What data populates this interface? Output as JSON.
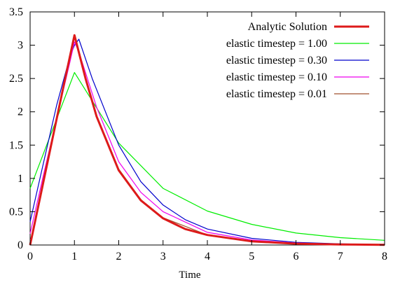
{
  "chart_data": {
    "type": "line",
    "title": "",
    "xlabel": "Time",
    "ylabel": "",
    "xlim": [
      0,
      8
    ],
    "ylim": [
      0,
      3.5
    ],
    "x_ticks": [
      "0",
      "1",
      "2",
      "3",
      "4",
      "5",
      "6",
      "7",
      "8"
    ],
    "y_ticks": [
      "0",
      "0.5",
      "1",
      "1.5",
      "2",
      "2.5",
      "3",
      "3.5"
    ],
    "grid": false,
    "legend_position": "top-right",
    "series": [
      {
        "name": "Analytic Solution",
        "color": "#dd1a1a",
        "line_style": "thick",
        "x": [
          0,
          0.25,
          0.5,
          0.75,
          1,
          1.25,
          1.5,
          2,
          2.5,
          3,
          3.5,
          4,
          5,
          6,
          7,
          8
        ],
        "y": [
          0,
          0.79,
          1.58,
          2.37,
          3.15,
          2.5,
          1.93,
          1.12,
          0.67,
          0.4,
          0.24,
          0.15,
          0.055,
          0.02,
          0.008,
          0.003
        ]
      },
      {
        "name": "elastic timestep = 1.00",
        "color": "#00ee00",
        "line_style": "thin",
        "x": [
          0,
          1,
          2,
          3,
          4,
          5,
          6,
          7,
          8
        ],
        "y": [
          0.85,
          2.59,
          1.53,
          0.85,
          0.51,
          0.31,
          0.18,
          0.11,
          0.07
        ]
      },
      {
        "name": "elastic timestep = 0.30",
        "color": "#0000cc",
        "line_style": "thin",
        "x": [
          0,
          0.3,
          0.6,
          0.9,
          1.0,
          1.1,
          1.4,
          2.0,
          2.5,
          3.0,
          3.5,
          4.0,
          5.0,
          6.0,
          7.0,
          8.0
        ],
        "y": [
          0.35,
          1.23,
          2.1,
          2.83,
          3.0,
          3.09,
          2.5,
          1.5,
          0.95,
          0.6,
          0.38,
          0.24,
          0.1,
          0.04,
          0.017,
          0.007
        ]
      },
      {
        "name": "elastic timestep = 0.10",
        "color": "#ee00ee",
        "line_style": "thin",
        "x": [
          0,
          0.3,
          0.6,
          0.9,
          1.0,
          1.1,
          1.5,
          2.0,
          2.5,
          3.0,
          4.0,
          5.0,
          6.0,
          7.0,
          8.0
        ],
        "y": [
          0.17,
          1.05,
          1.9,
          2.75,
          3.05,
          2.9,
          2.07,
          1.25,
          0.79,
          0.5,
          0.19,
          0.075,
          0.03,
          0.012,
          0.005
        ]
      },
      {
        "name": "elastic timestep = 0.01",
        "color": "#a0522d",
        "line_style": "thin",
        "x": [
          0,
          0.25,
          0.5,
          0.75,
          1.0,
          1.25,
          1.5,
          2.0,
          2.5,
          3.0,
          4.0,
          5.0,
          6.0,
          7.0,
          8.0
        ],
        "y": [
          0.03,
          0.82,
          1.6,
          2.38,
          3.14,
          2.52,
          1.95,
          1.14,
          0.68,
          0.41,
          0.15,
          0.056,
          0.021,
          0.008,
          0.003
        ]
      }
    ]
  }
}
